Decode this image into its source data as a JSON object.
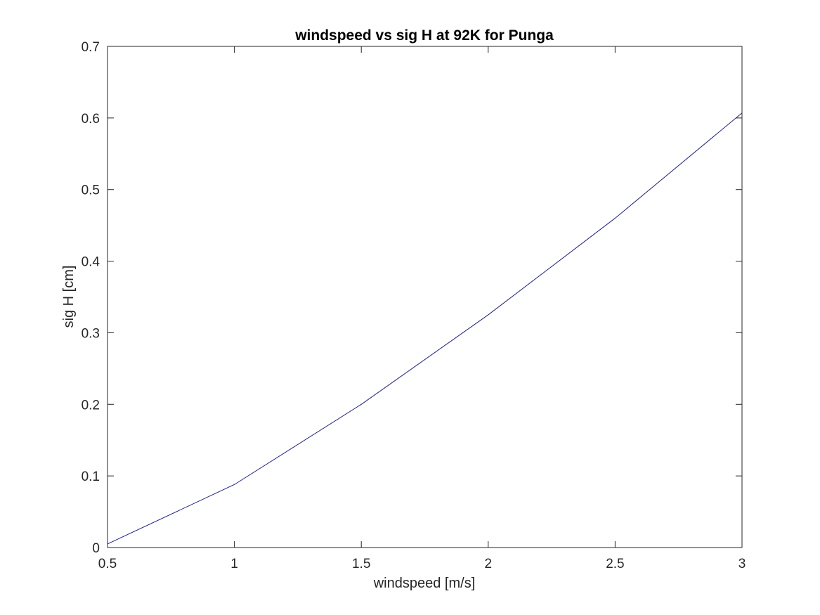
{
  "chart_data": {
    "type": "line",
    "title": "windspeed vs sig H at 92K for Punga",
    "xlabel": "windspeed [m/s]",
    "ylabel": "sig H [cm]",
    "xlim": [
      0.5,
      3
    ],
    "ylim": [
      0,
      0.7
    ],
    "xticks": [
      0.5,
      1,
      1.5,
      2,
      2.5,
      3
    ],
    "xtick_labels": [
      "0.5",
      "1",
      "1.5",
      "2",
      "2.5",
      "3"
    ],
    "yticks": [
      0,
      0.1,
      0.2,
      0.3,
      0.4,
      0.5,
      0.6,
      0.7
    ],
    "ytick_labels": [
      "0",
      "0.1",
      "0.2",
      "0.3",
      "0.4",
      "0.5",
      "0.6",
      "0.7"
    ],
    "grid": false,
    "box": true,
    "series": [
      {
        "color": "#1f1f8f",
        "x": [
          0.5,
          1.0,
          1.5,
          2.0,
          2.5,
          3.0
        ],
        "y": [
          0.005,
          0.088,
          0.2,
          0.325,
          0.46,
          0.607
        ]
      }
    ]
  }
}
